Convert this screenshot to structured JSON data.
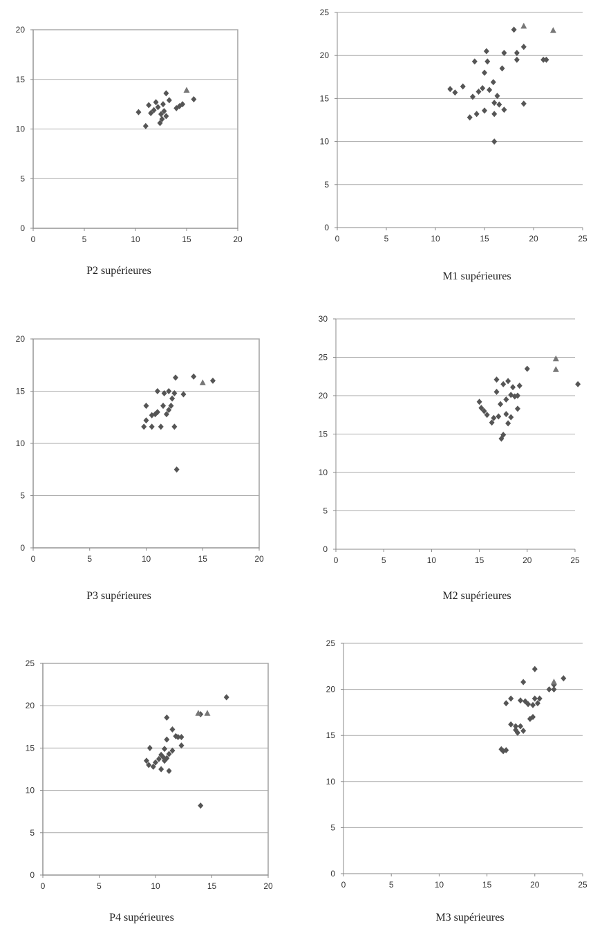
{
  "marker_colors": {
    "diamond": "#555555",
    "triangle": "#777777"
  },
  "chart_data": [
    {
      "type": "scatter",
      "caption": "P2 supérieures",
      "xlim": [
        0,
        20
      ],
      "ylim": [
        0,
        20
      ],
      "xticks": [
        0,
        5,
        10,
        15,
        20
      ],
      "yticks": [
        0,
        5,
        10,
        15,
        20
      ],
      "grid": "horizontal",
      "frame": true,
      "series": [
        {
          "marker": "diamond",
          "points": [
            [
              10.3,
              11.7
            ],
            [
              11.0,
              10.3
            ],
            [
              11.3,
              12.4
            ],
            [
              11.5,
              11.6
            ],
            [
              11.8,
              11.9
            ],
            [
              12.0,
              12.7
            ],
            [
              12.2,
              12.2
            ],
            [
              12.4,
              10.6
            ],
            [
              12.5,
              11.5
            ],
            [
              12.6,
              11.0
            ],
            [
              12.7,
              12.5
            ],
            [
              12.8,
              11.8
            ],
            [
              13.0,
              13.6
            ],
            [
              13.0,
              11.3
            ],
            [
              13.3,
              12.9
            ],
            [
              14.0,
              12.1
            ],
            [
              14.3,
              12.3
            ],
            [
              14.6,
              12.5
            ],
            [
              15.7,
              13.0
            ]
          ]
        },
        {
          "marker": "triangle",
          "points": [
            [
              15.0,
              13.9
            ]
          ]
        }
      ]
    },
    {
      "type": "scatter",
      "caption": "M1 supérieures",
      "xlim": [
        0,
        25
      ],
      "ylim": [
        0,
        25
      ],
      "xticks": [
        0,
        5,
        10,
        15,
        20,
        25
      ],
      "yticks": [
        0,
        5,
        10,
        15,
        20,
        25
      ],
      "grid": "horizontal",
      "frame": false,
      "series": [
        {
          "marker": "diamond",
          "points": [
            [
              11.5,
              16.1
            ],
            [
              12.0,
              15.7
            ],
            [
              12.8,
              16.4
            ],
            [
              13.5,
              12.8
            ],
            [
              13.8,
              15.2
            ],
            [
              14.0,
              19.3
            ],
            [
              14.2,
              13.2
            ],
            [
              14.4,
              15.8
            ],
            [
              14.8,
              16.2
            ],
            [
              15.0,
              18.0
            ],
            [
              15.0,
              13.6
            ],
            [
              15.2,
              20.5
            ],
            [
              15.3,
              19.3
            ],
            [
              15.5,
              16.0
            ],
            [
              15.9,
              16.9
            ],
            [
              16.0,
              14.5
            ],
            [
              16.0,
              13.2
            ],
            [
              16.0,
              10.0
            ],
            [
              16.3,
              15.3
            ],
            [
              16.5,
              14.3
            ],
            [
              16.8,
              18.5
            ],
            [
              17.0,
              20.3
            ],
            [
              17.0,
              13.7
            ],
            [
              18.0,
              23.0
            ],
            [
              18.3,
              19.5
            ],
            [
              18.3,
              20.3
            ],
            [
              19.0,
              21.0
            ],
            [
              19.0,
              14.4
            ],
            [
              21.0,
              19.5
            ],
            [
              21.3,
              19.5
            ]
          ]
        },
        {
          "marker": "triangle",
          "points": [
            [
              19.0,
              23.4
            ],
            [
              22.0,
              22.9
            ]
          ]
        }
      ]
    },
    {
      "type": "scatter",
      "caption": "P3 supérieures",
      "xlim": [
        0,
        20
      ],
      "ylim": [
        0,
        20
      ],
      "xticks": [
        0,
        5,
        10,
        15,
        20
      ],
      "yticks": [
        0,
        5,
        10,
        15,
        20
      ],
      "grid": "horizontal",
      "frame": true,
      "series": [
        {
          "marker": "diamond",
          "points": [
            [
              9.8,
              11.6
            ],
            [
              10.0,
              13.6
            ],
            [
              10.0,
              12.2
            ],
            [
              10.5,
              12.7
            ],
            [
              10.5,
              11.6
            ],
            [
              10.8,
              12.8
            ],
            [
              11.0,
              15.0
            ],
            [
              11.0,
              13.0
            ],
            [
              11.3,
              11.6
            ],
            [
              11.5,
              13.6
            ],
            [
              11.6,
              14.8
            ],
            [
              11.8,
              12.8
            ],
            [
              12.0,
              13.2
            ],
            [
              12.0,
              15.0
            ],
            [
              12.2,
              13.6
            ],
            [
              12.3,
              14.3
            ],
            [
              12.5,
              14.8
            ],
            [
              12.5,
              11.6
            ],
            [
              12.6,
              16.3
            ],
            [
              12.7,
              7.5
            ],
            [
              13.3,
              14.7
            ],
            [
              14.2,
              16.4
            ],
            [
              15.9,
              16.0
            ]
          ]
        },
        {
          "marker": "triangle",
          "points": [
            [
              15.0,
              15.8
            ]
          ]
        }
      ]
    },
    {
      "type": "scatter",
      "caption": "M2 supérieures",
      "xlim": [
        0,
        25
      ],
      "ylim": [
        0,
        30
      ],
      "xticks": [
        0,
        5,
        10,
        15,
        20,
        25
      ],
      "yticks": [
        0,
        5,
        10,
        15,
        20,
        25,
        30
      ],
      "grid": "horizontal",
      "frame": false,
      "series": [
        {
          "marker": "diamond",
          "points": [
            [
              15.0,
              19.2
            ],
            [
              15.2,
              18.4
            ],
            [
              15.5,
              18.0
            ],
            [
              15.8,
              17.5
            ],
            [
              16.3,
              16.5
            ],
            [
              16.5,
              17.1
            ],
            [
              16.8,
              22.1
            ],
            [
              16.8,
              20.5
            ],
            [
              17.0,
              17.3
            ],
            [
              17.2,
              18.9
            ],
            [
              17.3,
              14.4
            ],
            [
              17.5,
              14.9
            ],
            [
              17.5,
              21.5
            ],
            [
              17.8,
              17.6
            ],
            [
              17.8,
              19.5
            ],
            [
              18.0,
              16.4
            ],
            [
              18.0,
              21.9
            ],
            [
              18.3,
              17.2
            ],
            [
              18.3,
              20.1
            ],
            [
              18.5,
              21.1
            ],
            [
              18.7,
              19.9
            ],
            [
              19.0,
              18.3
            ],
            [
              19.0,
              20.0
            ],
            [
              19.2,
              21.3
            ],
            [
              20.0,
              23.5
            ],
            [
              25.3,
              21.5
            ]
          ]
        },
        {
          "marker": "triangle",
          "points": [
            [
              23.0,
              24.8
            ],
            [
              23.0,
              23.4
            ]
          ]
        }
      ]
    },
    {
      "type": "scatter",
      "caption": "P4 supérieures",
      "xlim": [
        0,
        20
      ],
      "ylim": [
        0,
        25
      ],
      "xticks": [
        0,
        5,
        10,
        15,
        20
      ],
      "yticks": [
        0,
        5,
        10,
        15,
        20,
        25
      ],
      "grid": "horizontal",
      "frame": true,
      "series": [
        {
          "marker": "diamond",
          "points": [
            [
              9.2,
              13.5
            ],
            [
              9.4,
              13.0
            ],
            [
              9.5,
              15.0
            ],
            [
              9.8,
              12.8
            ],
            [
              10.0,
              13.3
            ],
            [
              10.3,
              13.7
            ],
            [
              10.5,
              14.2
            ],
            [
              10.5,
              12.5
            ],
            [
              10.7,
              13.9
            ],
            [
              10.8,
              13.5
            ],
            [
              10.8,
              14.9
            ],
            [
              11.0,
              16.0
            ],
            [
              11.0,
              18.6
            ],
            [
              11.0,
              13.8
            ],
            [
              11.2,
              14.3
            ],
            [
              11.2,
              12.3
            ],
            [
              11.5,
              17.2
            ],
            [
              11.5,
              14.7
            ],
            [
              11.8,
              16.4
            ],
            [
              12.0,
              16.3
            ],
            [
              12.3,
              15.3
            ],
            [
              12.3,
              16.3
            ],
            [
              14.0,
              8.2
            ],
            [
              14.0,
              19.0
            ],
            [
              16.3,
              21.0
            ]
          ]
        },
        {
          "marker": "triangle",
          "points": [
            [
              13.8,
              19.1
            ],
            [
              14.6,
              19.1
            ]
          ]
        }
      ]
    },
    {
      "type": "scatter",
      "caption": "M3 supérieures",
      "xlim": [
        0,
        25
      ],
      "ylim": [
        0,
        25
      ],
      "xticks": [
        0,
        5,
        10,
        15,
        20,
        25
      ],
      "yticks": [
        0,
        5,
        10,
        15,
        20,
        25
      ],
      "grid": "horizontal",
      "frame": false,
      "series": [
        {
          "marker": "diamond",
          "points": [
            [
              16.5,
              13.5
            ],
            [
              16.7,
              13.3
            ],
            [
              17.0,
              13.4
            ],
            [
              17.0,
              18.5
            ],
            [
              17.5,
              16.2
            ],
            [
              17.5,
              19.0
            ],
            [
              18.0,
              15.6
            ],
            [
              18.0,
              16.0
            ],
            [
              18.2,
              15.3
            ],
            [
              18.5,
              16.0
            ],
            [
              18.5,
              18.8
            ],
            [
              18.8,
              15.5
            ],
            [
              18.8,
              20.8
            ],
            [
              19.0,
              18.7
            ],
            [
              19.3,
              18.4
            ],
            [
              19.5,
              16.8
            ],
            [
              19.8,
              18.3
            ],
            [
              19.8,
              17.0
            ],
            [
              20.0,
              22.2
            ],
            [
              20.0,
              19.0
            ],
            [
              20.3,
              18.5
            ],
            [
              20.5,
              19.0
            ],
            [
              21.5,
              20.0
            ],
            [
              22.0,
              20.0
            ],
            [
              22.0,
              20.5
            ],
            [
              23.0,
              21.2
            ]
          ]
        },
        {
          "marker": "triangle",
          "points": [
            [
              22.0,
              20.8
            ]
          ]
        }
      ]
    }
  ]
}
